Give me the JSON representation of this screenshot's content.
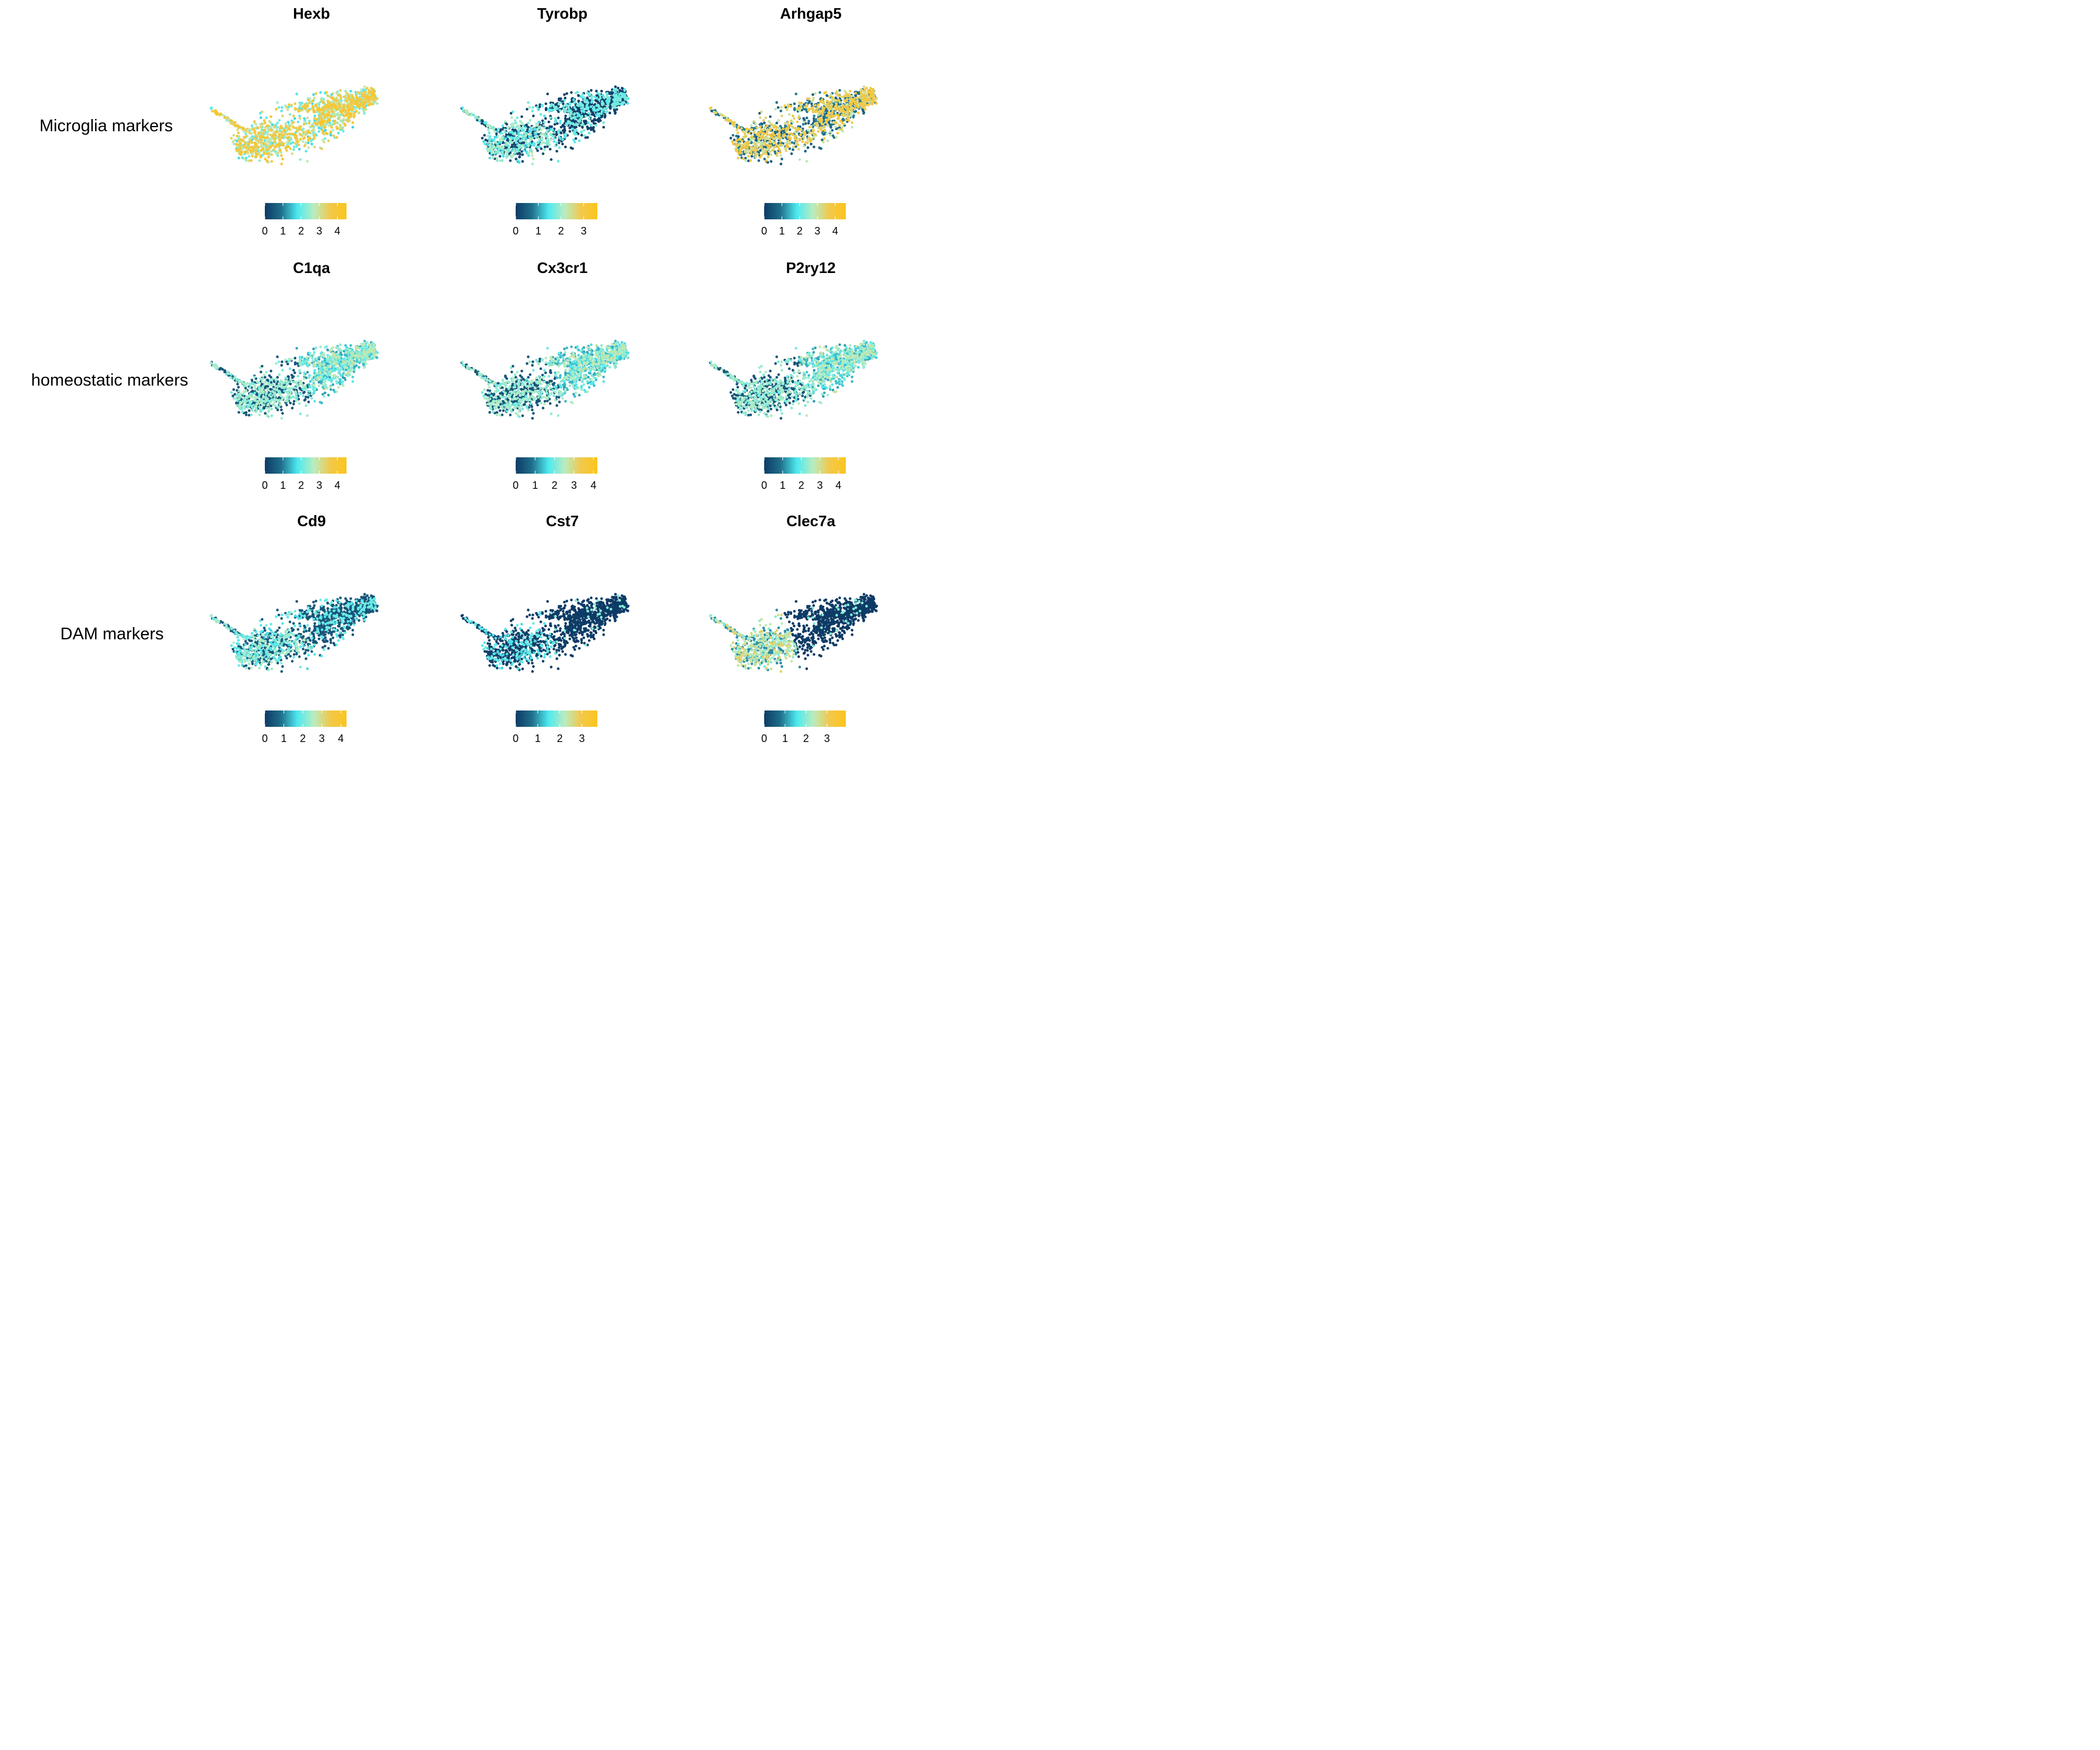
{
  "figure": {
    "row_labels": [
      "Microglia markers",
      "homeostatic markers",
      "DAM markers"
    ]
  },
  "palette": {
    "stops": [
      "#0d3b66",
      "#1f6f8b",
      "#4de9f0",
      "#b9ecc0",
      "#f2c84b",
      "#fbc51d"
    ],
    "background": "#ffffff"
  },
  "chart_data": [
    {
      "type": "scatter",
      "title": "Hexb",
      "row": "Microglia markers",
      "legend": {
        "ticks": [
          0,
          1,
          2,
          3,
          4
        ],
        "max": 4.5
      },
      "expression_pattern": "high-everywhere"
    },
    {
      "type": "scatter",
      "title": "Tyrobp",
      "row": "Microglia markers",
      "legend": {
        "ticks": [
          0,
          1,
          2,
          3
        ],
        "max": 3.6
      },
      "expression_pattern": "left-high-sparse"
    },
    {
      "type": "scatter",
      "title": "Arhgap5",
      "row": "Microglia markers",
      "legend": {
        "ticks": [
          0,
          1,
          2,
          3,
          4
        ],
        "max": 4.6
      },
      "expression_pattern": "mixed"
    },
    {
      "type": "scatter",
      "title": "C1qa",
      "row": "homeostatic markers",
      "legend": {
        "ticks": [
          0,
          1,
          2,
          3,
          4
        ],
        "max": 4.5
      },
      "expression_pattern": "right-high"
    },
    {
      "type": "scatter",
      "title": "Cx3cr1",
      "row": "homeostatic markers",
      "legend": {
        "ticks": [
          0,
          1,
          2,
          3,
          4
        ],
        "max": 4.2
      },
      "expression_pattern": "right-high"
    },
    {
      "type": "scatter",
      "title": "P2ry12",
      "row": "homeostatic markers",
      "legend": {
        "ticks": [
          0,
          1,
          2,
          3,
          4
        ],
        "max": 4.4
      },
      "expression_pattern": "right-high"
    },
    {
      "type": "scatter",
      "title": "Cd9",
      "row": "DAM markers",
      "legend": {
        "ticks": [
          0,
          1,
          2,
          3,
          4
        ],
        "max": 4.3
      },
      "expression_pattern": "left-mid"
    },
    {
      "type": "scatter",
      "title": "Cst7",
      "row": "DAM markers",
      "legend": {
        "ticks": [
          0,
          1,
          2,
          3
        ],
        "max": 3.7
      },
      "expression_pattern": "left-low"
    },
    {
      "type": "scatter",
      "title": "Clec7a",
      "row": "DAM markers",
      "legend": {
        "ticks": [
          0,
          1,
          2,
          3
        ],
        "max": 3.9
      },
      "expression_pattern": "left-high"
    }
  ]
}
